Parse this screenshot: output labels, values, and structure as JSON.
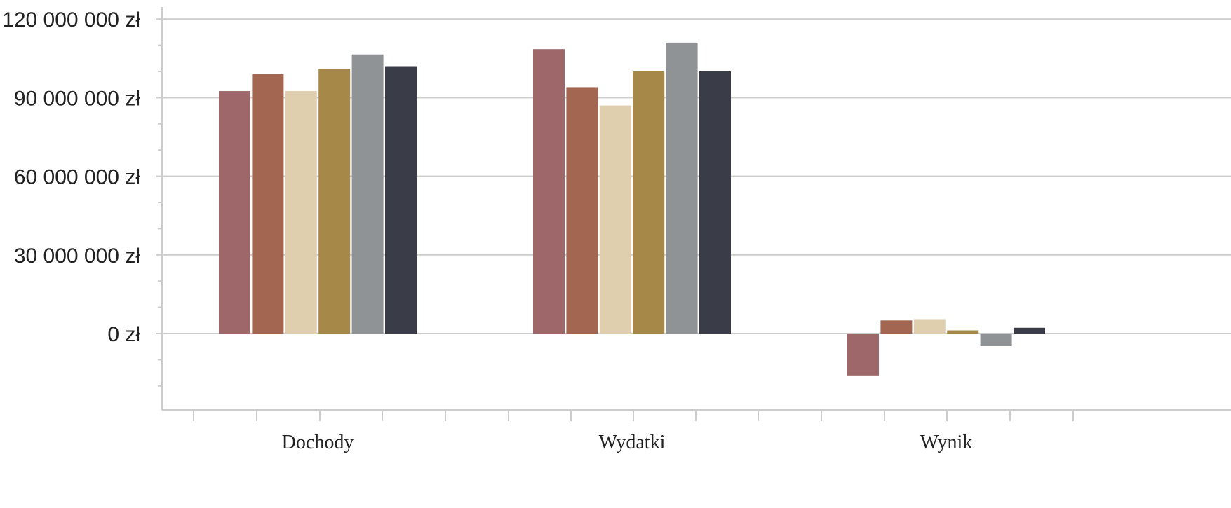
{
  "chart_data": {
    "type": "bar",
    "categories": [
      "Dochody",
      "Wydatki",
      "Wynik"
    ],
    "series": [
      {
        "values": [
          92500000,
          108500000,
          -16000000
        ],
        "color": "#9e6769"
      },
      {
        "values": [
          99000000,
          94000000,
          5000000
        ],
        "color": "#a36751"
      },
      {
        "values": [
          92500000,
          87000000,
          5500000
        ],
        "color": "#dfcfae"
      },
      {
        "values": [
          101000000,
          100000000,
          1200000
        ],
        "color": "#a68848"
      },
      {
        "values": [
          106500000,
          111000000,
          -4800000
        ],
        "color": "#909396"
      },
      {
        "values": [
          102000000,
          100000000,
          2200000
        ],
        "color": "#3a3c47"
      }
    ],
    "y_ticks": [
      "0 zł",
      "30 000 000 zł",
      "60 000 000 zł",
      "90 000 000 zł",
      "120 000 000 zł"
    ],
    "ylim": [
      -29000000,
      123000000
    ],
    "grid": true,
    "legend": "none"
  }
}
